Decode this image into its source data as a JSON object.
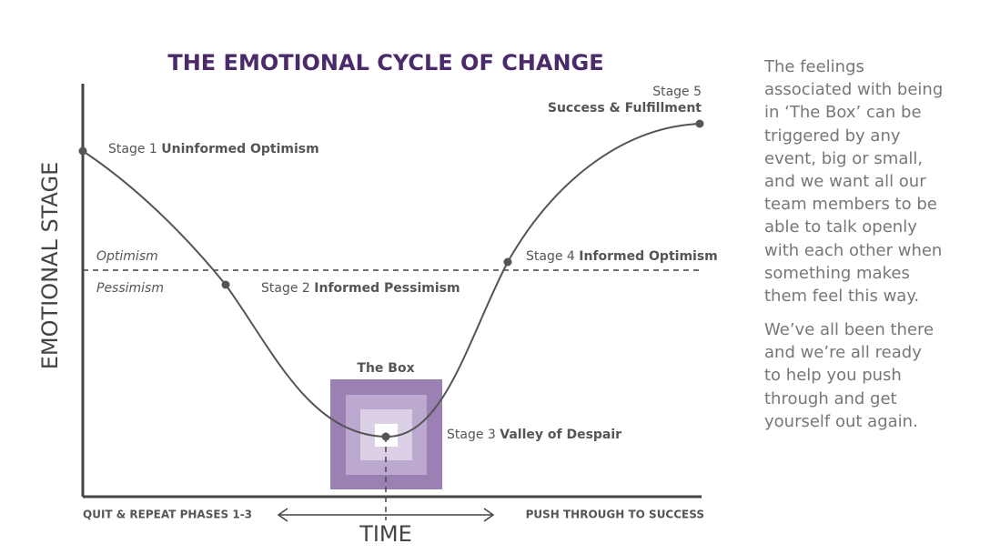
{
  "title": "THE EMOTIONAL CYCLE OF CHANGE",
  "y_axis_label": "EMOTIONAL STAGE",
  "x_axis_label": "TIME",
  "x_left_label": "QUIT & REPEAT PHASES 1-3",
  "x_right_label": "PUSH THROUGH TO SUCCESS",
  "optimism_label": "Optimism",
  "pessimism_label": "Pessimism",
  "box_label": "The Box",
  "stages": [
    {
      "label": "Stage 1",
      "name": "Uninformed Optimism"
    },
    {
      "label": "Stage 2",
      "name": "Informed Pessimism"
    },
    {
      "label": "Stage 3",
      "name": "Valley of Despair"
    },
    {
      "label": "Stage 4",
      "name": "Informed Optimism"
    },
    {
      "label": "Stage 5",
      "name": "Success & Fulfillment"
    }
  ],
  "side_text": [
    [
      "The feelings",
      "associated with being",
      "in ‘The Box’ can be",
      "triggered by any",
      "event, big or small,",
      "and we want all our",
      "team members to be",
      "able to talk openly",
      "with each other when",
      "something makes",
      "them feel this way."
    ],
    [
      "We’ve all been there",
      "and we’re all ready",
      "to help you push",
      "through and get",
      "yourself out again."
    ]
  ]
}
